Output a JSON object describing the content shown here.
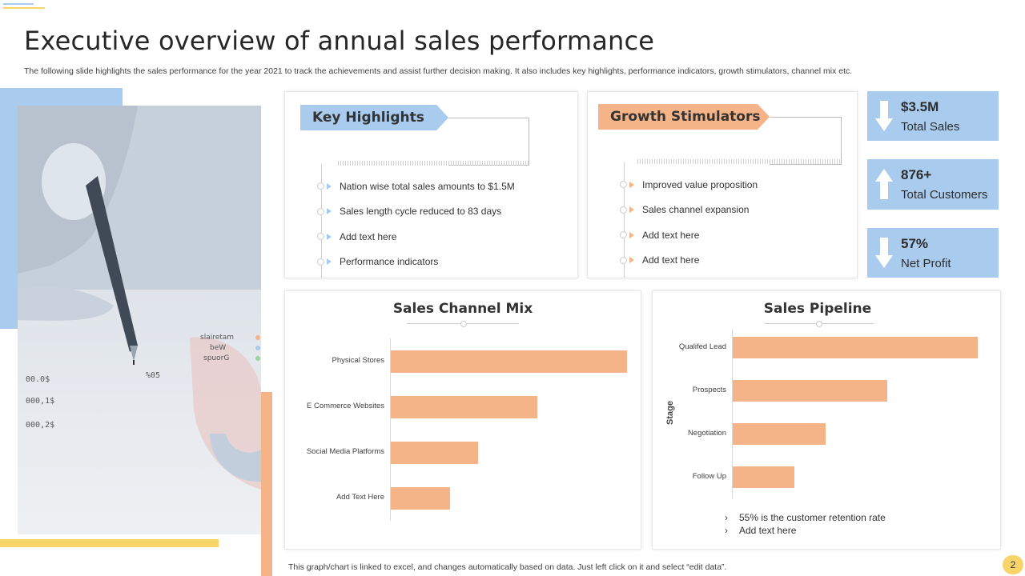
{
  "title": "Executive overview of annual sales performance",
  "subtitle": "The following slide highlights the sales performance for the year 2021 to track the achievements and assist further decision making. It also includes key highlights, performance indicators, growth stimulators, channel mix etc.",
  "colors": {
    "blue": "#a9cbee",
    "orange": "#f5b388",
    "yellow": "#f9d46a"
  },
  "key_highlights": {
    "heading": "Key Highlights",
    "items": [
      "Nation wise total sales amounts to $1.5M",
      "Sales length cycle reduced to 83 days",
      "Add text here",
      "Performance indicators"
    ]
  },
  "growth_stimulators": {
    "heading": "Growth Stimulators",
    "items": [
      "Improved value proposition",
      "Sales channel expansion",
      "Add text here",
      "Add text here"
    ]
  },
  "kpis": [
    {
      "value": "$3.5M",
      "label": "Total Sales",
      "icon": "arrow-down-icon"
    },
    {
      "value": "876+",
      "label": "Total Customers",
      "icon": "arrow-up-icon"
    },
    {
      "value": "57%",
      "label": "Net Profit",
      "icon": "arrow-down-icon"
    }
  ],
  "chart_data": [
    {
      "type": "bar",
      "orientation": "horizontal",
      "title": "Sales Channel Mix",
      "categories": [
        "Physical Stores",
        "E Commerce Websites",
        "Social Media Platforms",
        "Add Text Here"
      ],
      "values": [
        100,
        62,
        37,
        25
      ],
      "xlabel": "",
      "ylabel": ""
    },
    {
      "type": "bar",
      "orientation": "horizontal",
      "title": "Sales Pipeline",
      "categories": [
        "Qualifed Lead",
        "Prospects",
        "Negotiation",
        "Follow Up"
      ],
      "values": [
        100,
        63,
        38,
        25
      ],
      "xlabel": "",
      "ylabel": "Stage"
    }
  ],
  "pipeline_notes": [
    "55% is the customer retention rate",
    "Add text here"
  ],
  "footnote": "This graph/chart is linked to excel, and changes automatically based on data. Just left click on it and select “edit data”.",
  "page_number": "2"
}
